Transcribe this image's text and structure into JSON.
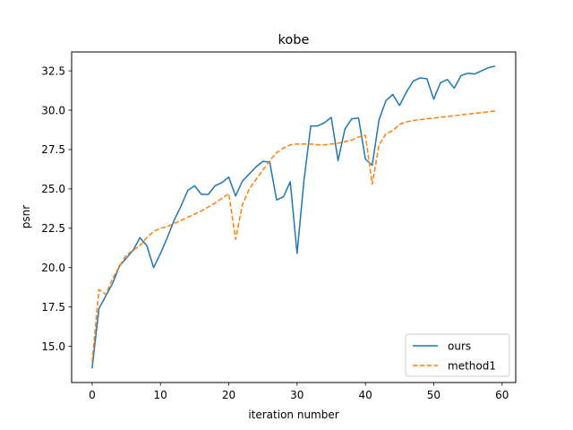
{
  "chart_data": {
    "type": "line",
    "title": "kobe",
    "xlabel": "iteration number",
    "ylabel": "psnr",
    "xlim": [
      -3,
      62
    ],
    "ylim": [
      12.7,
      33.7
    ],
    "xticks": [
      0,
      10,
      20,
      30,
      40,
      50,
      60
    ],
    "xtick_labels": [
      "0",
      "10",
      "20",
      "30",
      "40",
      "50",
      "60"
    ],
    "yticks": [
      15.0,
      17.5,
      20.0,
      22.5,
      25.0,
      27.5,
      30.0,
      32.5
    ],
    "ytick_labels": [
      "15.0",
      "17.5",
      "20.0",
      "22.5",
      "25.0",
      "27.5",
      "30.0",
      "32.5"
    ],
    "grid": false,
    "legend_position": "lower-right",
    "series": [
      {
        "name": "ours",
        "color": "#1f77b4",
        "style": "solid",
        "x": [
          0,
          1,
          2,
          3,
          4,
          5,
          6,
          7,
          8,
          9,
          10,
          11,
          12,
          13,
          14,
          15,
          16,
          17,
          18,
          19,
          20,
          21,
          22,
          23,
          24,
          25,
          26,
          27,
          28,
          29,
          30,
          31,
          32,
          33,
          34,
          35,
          36,
          37,
          38,
          39,
          40,
          41,
          42,
          43,
          44,
          45,
          46,
          47,
          48,
          49,
          50,
          51,
          52,
          53,
          54,
          55,
          56,
          57,
          58,
          59
        ],
        "y": [
          13.6,
          17.4,
          18.2,
          19.0,
          20.1,
          20.6,
          21.1,
          21.9,
          21.4,
          20.0,
          20.9,
          21.9,
          23.0,
          23.9,
          24.9,
          25.2,
          24.65,
          24.65,
          25.2,
          25.4,
          25.75,
          24.55,
          25.5,
          25.95,
          26.4,
          26.75,
          26.7,
          24.3,
          24.5,
          25.45,
          20.9,
          25.5,
          29.0,
          29.0,
          29.2,
          29.55,
          26.8,
          28.8,
          29.45,
          29.5,
          26.9,
          26.5,
          29.4,
          30.6,
          31.0,
          30.3,
          31.15,
          31.85,
          32.05,
          32.0,
          30.7,
          31.75,
          31.95,
          31.4,
          32.2,
          32.35,
          32.3,
          32.5,
          32.7,
          32.8
        ]
      },
      {
        "name": "method1",
        "color": "#ff7f0e",
        "style": "dashed",
        "x": [
          0,
          1,
          2,
          3,
          4,
          5,
          6,
          7,
          8,
          9,
          10,
          11,
          12,
          13,
          14,
          15,
          16,
          17,
          18,
          19,
          20,
          21,
          22,
          23,
          24,
          25,
          26,
          27,
          28,
          29,
          30,
          31,
          32,
          33,
          34,
          35,
          36,
          37,
          38,
          39,
          40,
          41,
          42,
          43,
          44,
          45,
          46,
          47,
          48,
          49,
          50,
          51,
          52,
          53,
          54,
          55,
          56,
          57,
          58,
          59
        ],
        "y": [
          14.0,
          18.6,
          18.3,
          19.3,
          20.1,
          20.8,
          21.1,
          21.4,
          21.9,
          22.3,
          22.5,
          22.6,
          22.8,
          23.0,
          23.2,
          23.4,
          23.6,
          23.85,
          24.1,
          24.4,
          24.7,
          21.8,
          24.0,
          25.0,
          25.6,
          26.2,
          26.8,
          27.3,
          27.6,
          27.8,
          27.85,
          27.85,
          27.85,
          27.8,
          27.8,
          27.85,
          27.9,
          28.0,
          28.1,
          28.3,
          28.4,
          25.3,
          27.8,
          28.5,
          28.7,
          29.1,
          29.25,
          29.35,
          29.4,
          29.45,
          29.5,
          29.55,
          29.6,
          29.65,
          29.7,
          29.75,
          29.8,
          29.85,
          29.9,
          29.95
        ]
      }
    ]
  }
}
